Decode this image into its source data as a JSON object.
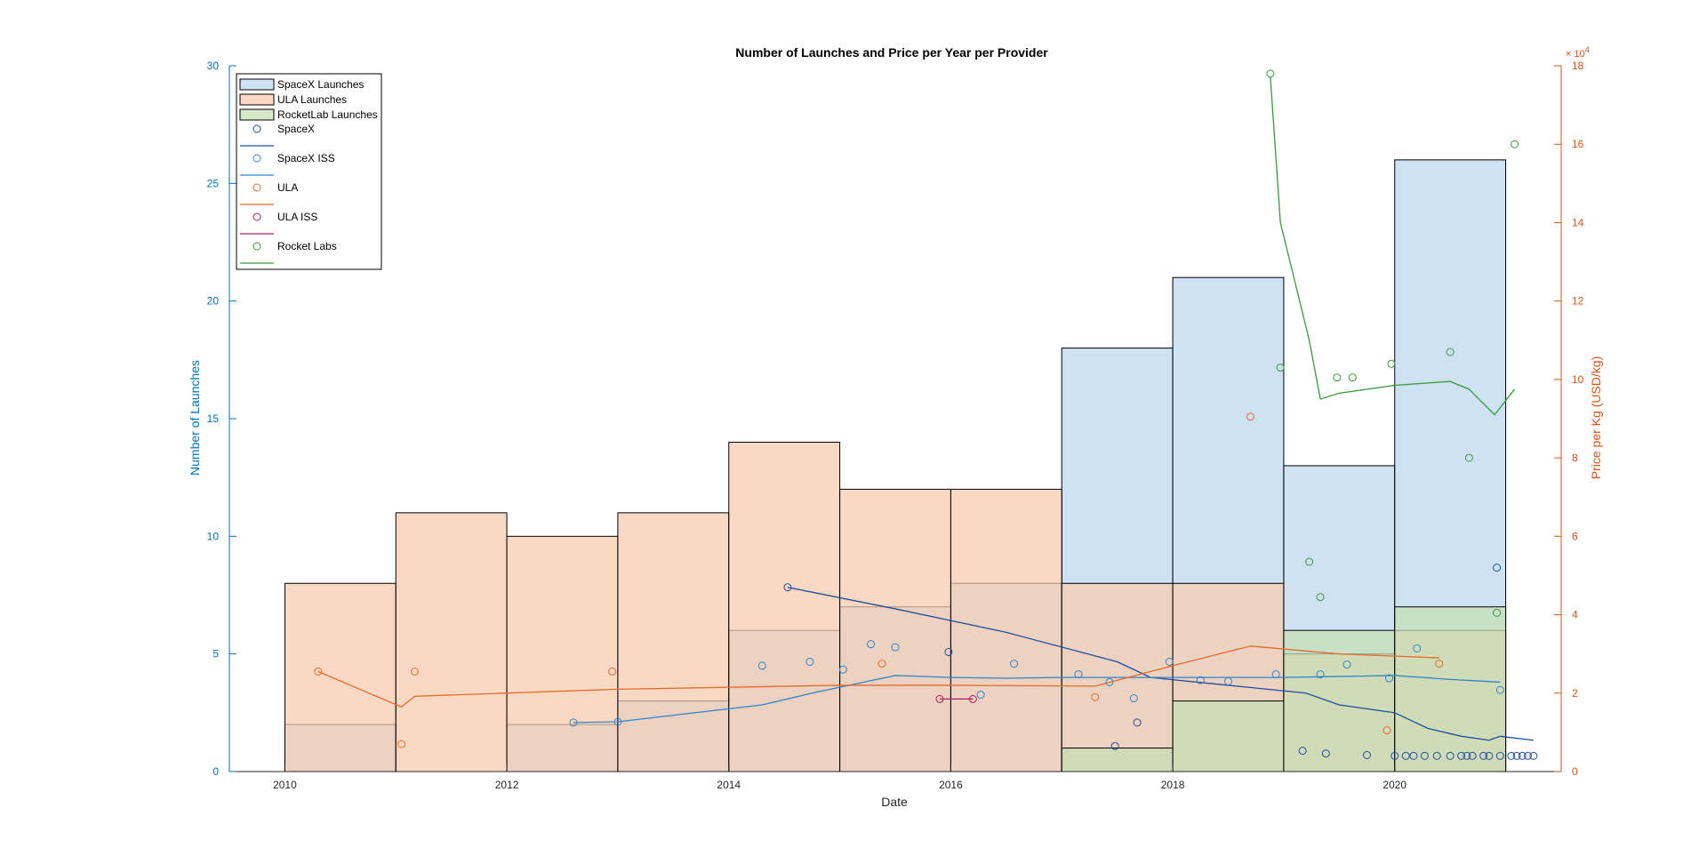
{
  "chart_data": {
    "type": "bar",
    "title": "Number of Launches and Price per Year per Provider",
    "xlabel": "Date",
    "ylabel_left": "Number of Launches",
    "ylabel_right": "Price per Kg (USD/kg)",
    "right_axis_exponent": "× 10",
    "right_axis_exponent_power": "4",
    "xlim": [
      2009.5,
      2021.5
    ],
    "ylim_left": [
      0,
      30
    ],
    "ylim_right": [
      0,
      180000
    ],
    "x_ticks": [
      2010,
      2012,
      2014,
      2016,
      2018,
      2020
    ],
    "y_ticks_left": [
      0,
      5,
      10,
      15,
      20,
      25,
      30
    ],
    "y_ticks_right": [
      0,
      2,
      4,
      6,
      8,
      10,
      12,
      14,
      16,
      18
    ],
    "grid": false,
    "legend_position": "top-left",
    "colors": {
      "spacex_bar": "#bdd7ee",
      "ula_bar": "#f8cbad",
      "rocketlab_bar": "#c5e0b4",
      "spacex": "#1f4e9e",
      "spacex_iss": "#2e86c8",
      "ula": "#e46c2c",
      "ula_iss": "#b01f5a",
      "rocketlab": "#3a9a3a",
      "left_axis": "#0072bd",
      "right_axis": "#d95319"
    },
    "bin_starts": [
      2010,
      2011,
      2012,
      2013,
      2014,
      2015,
      2016,
      2017,
      2018,
      2019,
      2020
    ],
    "bar_series": [
      {
        "name": "SpaceX Launches",
        "values": [
          2,
          0,
          2,
          3,
          6,
          7,
          8,
          18,
          21,
          13,
          26
        ]
      },
      {
        "name": "ULA Launches",
        "values": [
          8,
          11,
          10,
          11,
          14,
          12,
          12,
          8,
          8,
          5,
          6
        ]
      },
      {
        "name": "RocketLab Launches",
        "values": [
          0,
          0,
          0,
          0,
          0,
          0,
          0,
          1,
          3,
          6,
          7
        ]
      }
    ],
    "price_series": [
      {
        "name": "SpaceX",
        "points": [
          [
            2014.53,
            47000
          ],
          [
            2015.98,
            30500
          ],
          [
            2017.48,
            6500
          ],
          [
            2017.68,
            12500
          ],
          [
            2020.92,
            52000
          ],
          [
            2019.17,
            5300
          ],
          [
            2019.38,
            4600
          ],
          [
            2019.75,
            4200
          ],
          [
            2020.0,
            4000
          ],
          [
            2020.1,
            4000
          ],
          [
            2020.17,
            4000
          ],
          [
            2020.27,
            4000
          ],
          [
            2020.38,
            4000
          ],
          [
            2020.5,
            4000
          ],
          [
            2020.6,
            4000
          ],
          [
            2020.65,
            4000
          ],
          [
            2020.7,
            4000
          ],
          [
            2020.8,
            4000
          ],
          [
            2020.85,
            4000
          ],
          [
            2020.95,
            4000
          ],
          [
            2021.05,
            4000
          ],
          [
            2021.1,
            4000
          ],
          [
            2021.15,
            4000
          ],
          [
            2021.2,
            4000
          ],
          [
            2021.25,
            4000
          ]
        ],
        "trend": [
          [
            2014.53,
            47000
          ],
          [
            2015.5,
            41500
          ],
          [
            2016.5,
            35500
          ],
          [
            2017.5,
            28000
          ],
          [
            2017.8,
            24000
          ],
          [
            2018.5,
            22000
          ],
          [
            2019.2,
            20000
          ],
          [
            2019.5,
            17000
          ],
          [
            2020.0,
            15000
          ],
          [
            2020.3,
            11000
          ],
          [
            2020.6,
            9000
          ],
          [
            2020.85,
            8000
          ],
          [
            2020.95,
            9000
          ],
          [
            2021.25,
            8000
          ]
        ]
      },
      {
        "name": "SpaceX ISS",
        "points": [
          [
            2012.6,
            12500
          ],
          [
            2013.0,
            12700
          ],
          [
            2014.3,
            27000
          ],
          [
            2014.73,
            28000
          ],
          [
            2015.03,
            26000
          ],
          [
            2015.28,
            32500
          ],
          [
            2015.5,
            31700
          ],
          [
            2016.27,
            19600
          ],
          [
            2016.57,
            27500
          ],
          [
            2017.15,
            24800
          ],
          [
            2017.43,
            22800
          ],
          [
            2017.65,
            18700
          ],
          [
            2017.97,
            28000
          ],
          [
            2018.25,
            23300
          ],
          [
            2018.5,
            23000
          ],
          [
            2018.93,
            24800
          ],
          [
            2019.33,
            24800
          ],
          [
            2019.57,
            27300
          ],
          [
            2019.95,
            23800
          ],
          [
            2020.2,
            31400
          ],
          [
            2020.95,
            20800
          ]
        ],
        "trend": [
          [
            2012.6,
            12500
          ],
          [
            2013.0,
            12700
          ],
          [
            2014.3,
            17000
          ],
          [
            2014.75,
            20000
          ],
          [
            2015.5,
            24500
          ],
          [
            2016.0,
            24000
          ],
          [
            2016.5,
            23800
          ],
          [
            2017.0,
            24000
          ],
          [
            2018.0,
            24000
          ],
          [
            2019.0,
            24000
          ],
          [
            2020.0,
            24500
          ],
          [
            2020.5,
            23500
          ],
          [
            2020.95,
            22800
          ]
        ]
      },
      {
        "name": "ULA",
        "points": [
          [
            2010.3,
            25500
          ],
          [
            2011.05,
            7000
          ],
          [
            2011.17,
            25500
          ],
          [
            2012.95,
            25500
          ],
          [
            2015.38,
            27500
          ],
          [
            2017.3,
            19000
          ],
          [
            2018.7,
            90500
          ],
          [
            2019.93,
            10500
          ],
          [
            2020.4,
            27500
          ]
        ],
        "trend": [
          [
            2010.3,
            25500
          ],
          [
            2011.05,
            16500
          ],
          [
            2011.17,
            19200
          ],
          [
            2013.0,
            21000
          ],
          [
            2015.0,
            22000
          ],
          [
            2016.0,
            22000
          ],
          [
            2017.3,
            21800
          ],
          [
            2018.0,
            27000
          ],
          [
            2018.7,
            32000
          ],
          [
            2019.5,
            30000
          ],
          [
            2020.4,
            29000
          ]
        ]
      },
      {
        "name": "ULA ISS",
        "points": [
          [
            2015.9,
            18500
          ],
          [
            2016.2,
            18500
          ]
        ],
        "trend": [
          [
            2015.9,
            18500
          ],
          [
            2016.2,
            18500
          ]
        ]
      },
      {
        "name": "Rocket Labs",
        "points": [
          [
            2018.88,
            178000
          ],
          [
            2018.97,
            103000
          ],
          [
            2019.23,
            53500
          ],
          [
            2019.33,
            44500
          ],
          [
            2019.48,
            100500
          ],
          [
            2019.62,
            100500
          ],
          [
            2019.97,
            104000
          ],
          [
            2020.5,
            107000
          ],
          [
            2020.67,
            80000
          ],
          [
            2020.92,
            40500
          ],
          [
            2021.08,
            160000
          ]
        ],
        "trend": [
          [
            2018.88,
            177000
          ],
          [
            2018.97,
            140000
          ],
          [
            2019.23,
            110000
          ],
          [
            2019.33,
            95000
          ],
          [
            2019.5,
            96500
          ],
          [
            2020.0,
            98500
          ],
          [
            2020.5,
            99500
          ],
          [
            2020.67,
            97500
          ],
          [
            2020.9,
            91000
          ],
          [
            2021.08,
            97500
          ]
        ]
      }
    ]
  }
}
